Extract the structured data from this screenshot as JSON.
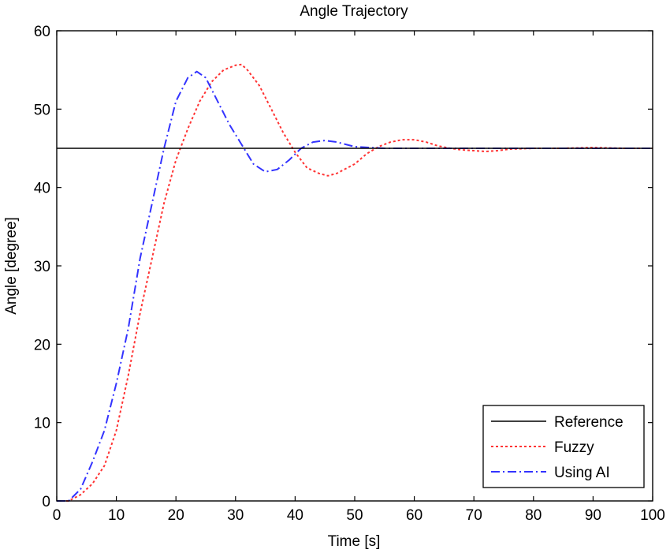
{
  "chart_data": {
    "type": "line",
    "title": "Angle Trajectory",
    "xlabel": "Time [s]",
    "ylabel": "Angle [degree]",
    "xlim": [
      0,
      100
    ],
    "ylim": [
      0,
      60
    ],
    "xticks": [
      "0",
      "10",
      "20",
      "30",
      "40",
      "50",
      "60",
      "70",
      "80",
      "90",
      "100"
    ],
    "yticks": [
      "0",
      "10",
      "20",
      "30",
      "40",
      "50",
      "60"
    ],
    "grid": false,
    "legend_position": "bottom-right",
    "series": [
      {
        "name": "Reference",
        "color": "#000000",
        "style": "solid",
        "x": [
          0,
          100
        ],
        "y": [
          45,
          45
        ]
      },
      {
        "name": "Fuzzy",
        "color": "#ff3333",
        "style": "dotted",
        "x": [
          0,
          2,
          4,
          6,
          8,
          10,
          12,
          14,
          16,
          18,
          20,
          22,
          24,
          26,
          28,
          30,
          31,
          32,
          34,
          36,
          38,
          40,
          42,
          44,
          45.5,
          47,
          50,
          52,
          54,
          56,
          58,
          60,
          62,
          64,
          66,
          68,
          70,
          72,
          74,
          76,
          80,
          85,
          90,
          95,
          100
        ],
        "y": [
          0,
          0,
          0.8,
          2.2,
          4.5,
          9,
          16,
          24,
          31,
          38,
          43.5,
          47.5,
          51,
          53.5,
          55,
          55.6,
          55.7,
          55,
          53,
          50,
          47,
          44.5,
          42.5,
          41.8,
          41.5,
          41.8,
          43,
          44.3,
          45.2,
          45.8,
          46.1,
          46.1,
          45.8,
          45.3,
          45,
          44.8,
          44.7,
          44.6,
          44.7,
          44.9,
          45,
          45,
          45.1,
          45,
          45
        ]
      },
      {
        "name": "Using AI",
        "color": "#3333ff",
        "style": "dashdot",
        "x": [
          0,
          2,
          4,
          6,
          8,
          10,
          12,
          14,
          16,
          18,
          20,
          22,
          23.5,
          25,
          27,
          29,
          31,
          33,
          35,
          37,
          39,
          41,
          43,
          45,
          47,
          50,
          55,
          60,
          65,
          70,
          80,
          90,
          100
        ],
        "y": [
          0,
          0,
          1.5,
          5,
          9,
          15,
          22,
          31,
          38,
          45,
          51,
          54,
          54.8,
          54,
          51,
          48,
          45.5,
          43,
          42,
          42.3,
          43.5,
          45,
          45.8,
          46,
          45.8,
          45.2,
          45,
          45,
          45,
          45,
          45,
          45,
          45
        ]
      }
    ]
  }
}
